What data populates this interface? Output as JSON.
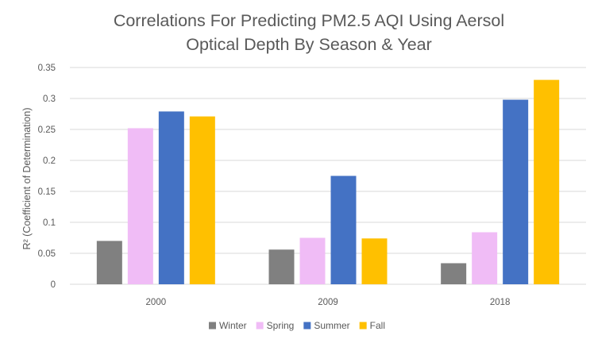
{
  "chart_data": {
    "type": "bar",
    "title_lines": [
      "Correlations For Predicting PM2.5 AQI Using  Aersol",
      "Optical Depth By Season & Year"
    ],
    "ylabel": "R² (Coefficient of Determination)",
    "xlabel": "",
    "categories": [
      "2000",
      "2009",
      "2018"
    ],
    "ylim": [
      0,
      0.35
    ],
    "yticks": [
      "0",
      "0.05",
      "0.1",
      "0.15",
      "0.2",
      "0.25",
      "0.3",
      "0.35"
    ],
    "ytick_values": [
      0,
      0.05,
      0.1,
      0.15,
      0.2,
      0.25,
      0.3,
      0.35
    ],
    "grid": true,
    "legend_position": "bottom",
    "series": [
      {
        "name": "Winter",
        "color": "#808080",
        "values": [
          0.07,
          0.056,
          0.034
        ]
      },
      {
        "name": "Spring",
        "color": "#f0bcf6",
        "values": [
          0.252,
          0.075,
          0.084
        ]
      },
      {
        "name": "Summer",
        "color": "#4472c4",
        "values": [
          0.279,
          0.175,
          0.298
        ]
      },
      {
        "name": "Fall",
        "color": "#ffc000",
        "values": [
          0.271,
          0.074,
          0.33
        ]
      }
    ]
  }
}
